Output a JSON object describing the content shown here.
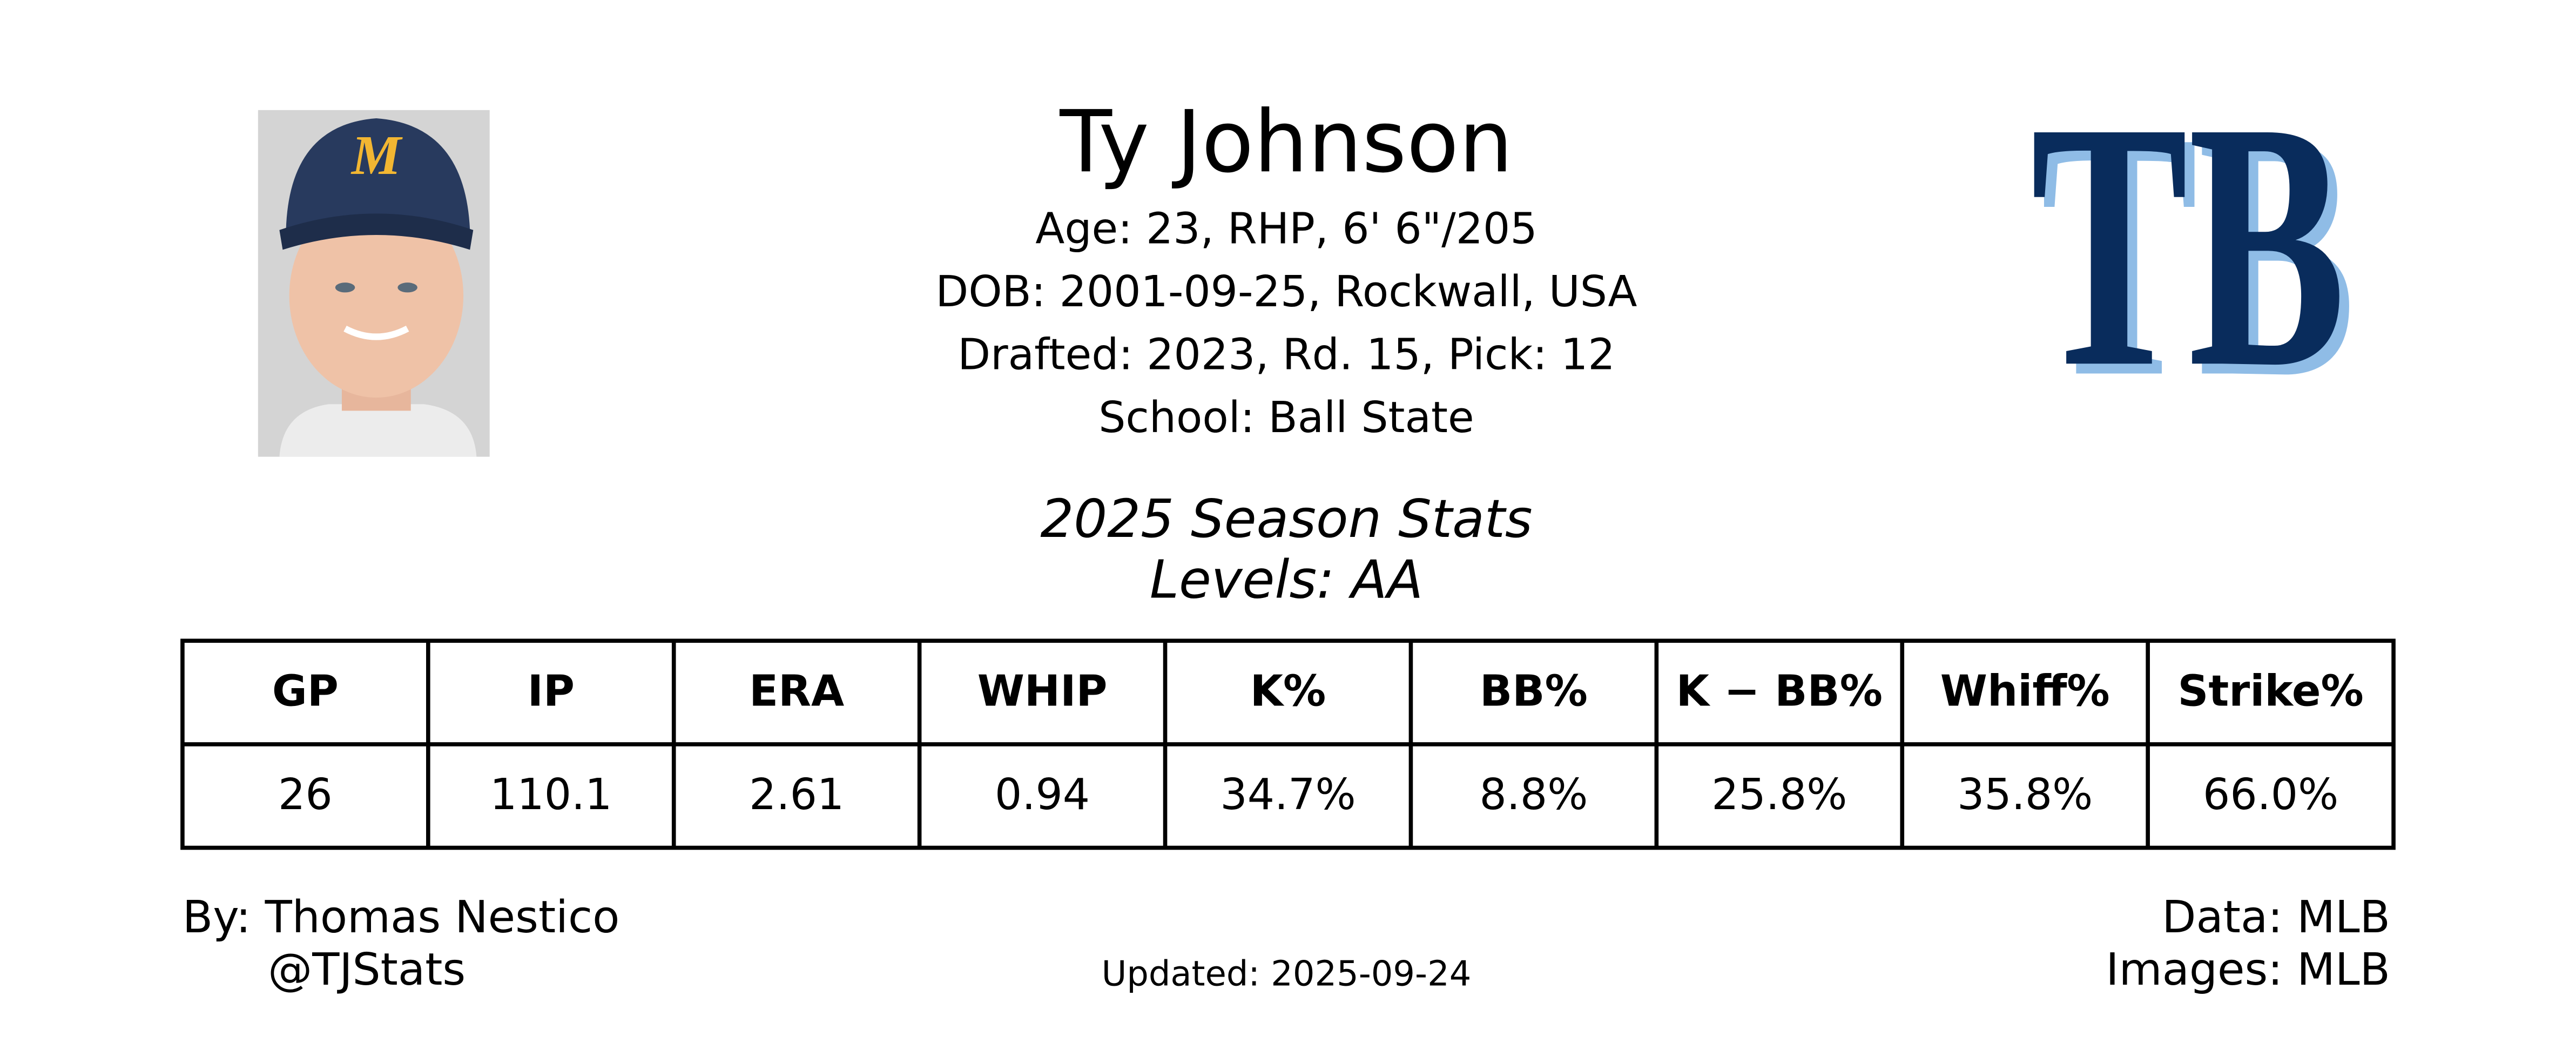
{
  "header": {
    "name": "Ty Johnson",
    "details": [
      "Age: 23, RHP, 6' 6\"/205",
      "DOB: 2001-09-25, Rockwall, USA",
      "Drafted: 2023, Rd. 15, Pick: 12",
      "School: Ball State"
    ],
    "team_logo": "TB"
  },
  "stats": {
    "title": "2025 Season Stats",
    "subtitle": "Levels: AA",
    "table": {
      "columns": [
        "GP",
        "IP",
        "ERA",
        "WHIP",
        "K%",
        "BB%",
        "K − BB%",
        "Whiff%",
        "Strike%"
      ],
      "rows": [
        [
          "26",
          "110.1",
          "2.61",
          "0.94",
          "34.7%",
          "8.8%",
          "25.8%",
          "35.8%",
          "66.0%"
        ]
      ]
    }
  },
  "footer": {
    "author": "By: Thomas Nestico",
    "handle": "@TJStats",
    "updated": "Updated: 2025-09-24",
    "data_source": "Data: MLB",
    "image_source": "Images: MLB"
  }
}
